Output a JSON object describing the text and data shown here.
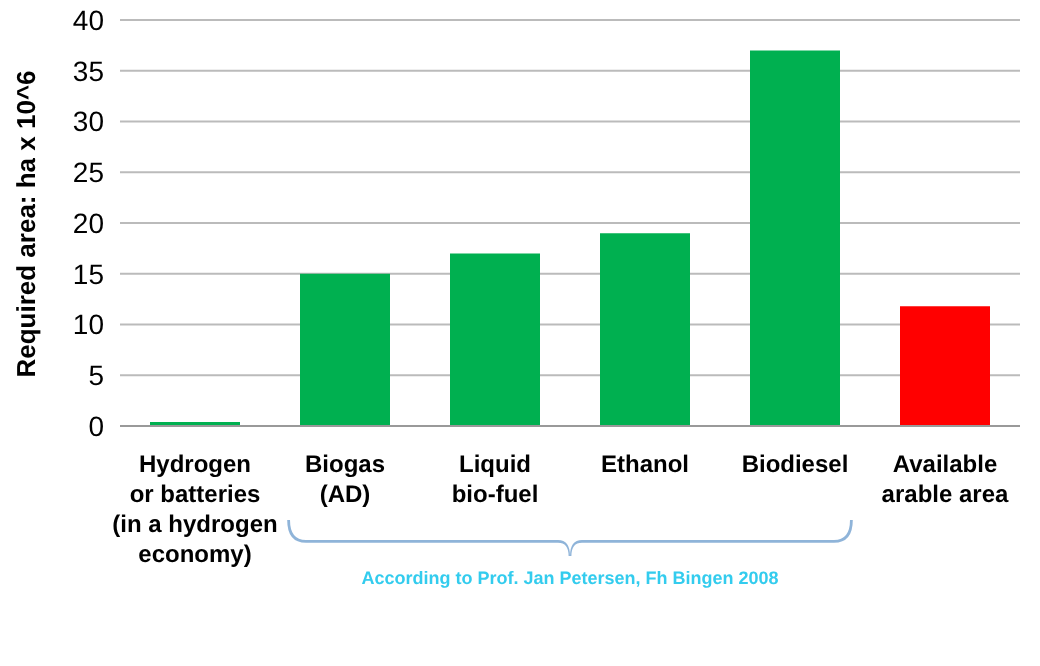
{
  "chart_data": {
    "type": "bar",
    "ylabel": "Required area: ha x 10^6",
    "categories": [
      "Hydrogen\nor batteries\n(in a hydrogen\neconomy)",
      "Biogas\n(AD)",
      "Liquid\nbio-fuel",
      "Ethanol",
      "Biodiesel",
      "Available\narable area"
    ],
    "values": [
      0.4,
      15,
      17,
      19,
      37,
      11.8
    ],
    "colors": [
      "#00b050",
      "#00b050",
      "#00b050",
      "#00b050",
      "#00b050",
      "#ff0000"
    ],
    "ylim": [
      0,
      40
    ],
    "yticks": [
      0,
      5,
      10,
      15,
      20,
      25,
      30,
      35,
      40
    ],
    "grid": "y",
    "annotations": [
      "According to Prof. Jan Petersen, Fh Bingen 2008"
    ]
  }
}
